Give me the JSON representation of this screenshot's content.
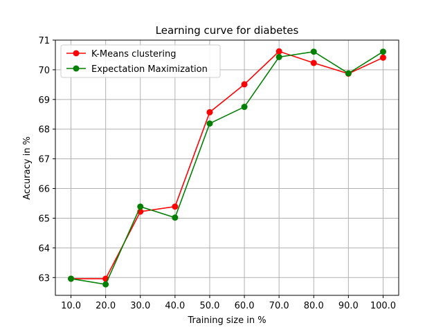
{
  "chart_data": {
    "type": "line",
    "title": "Learning curve for diabetes",
    "xlabel": "Training size in %",
    "ylabel": "Accuracy in %",
    "x": [
      10.0,
      20.0,
      30.0,
      40.0,
      50.0,
      60.0,
      70.0,
      80.0,
      90.0,
      100.0
    ],
    "x_tick_labels": [
      "10.0",
      "20.0",
      "30.0",
      "40.0",
      "50.0",
      "60.0",
      "70.0",
      "80.0",
      "90.0",
      "100.0"
    ],
    "y_ticks": [
      63,
      64,
      65,
      66,
      67,
      68,
      69,
      70,
      71
    ],
    "ylim": [
      62.4,
      71.0
    ],
    "xlim": [
      5.5,
      104.5
    ],
    "grid": true,
    "legend_position": "top-left",
    "series": [
      {
        "name": "K-Means clustering",
        "color": "#ff0000",
        "marker": "circle",
        "values": [
          62.96,
          62.96,
          65.22,
          65.39,
          68.57,
          69.51,
          70.62,
          70.23,
          69.87,
          70.41
        ]
      },
      {
        "name": "Expectation Maximization",
        "color": "#008000",
        "marker": "circle",
        "values": [
          62.96,
          62.77,
          65.39,
          65.02,
          68.19,
          68.75,
          70.43,
          70.61,
          69.88,
          70.61
        ]
      }
    ]
  }
}
